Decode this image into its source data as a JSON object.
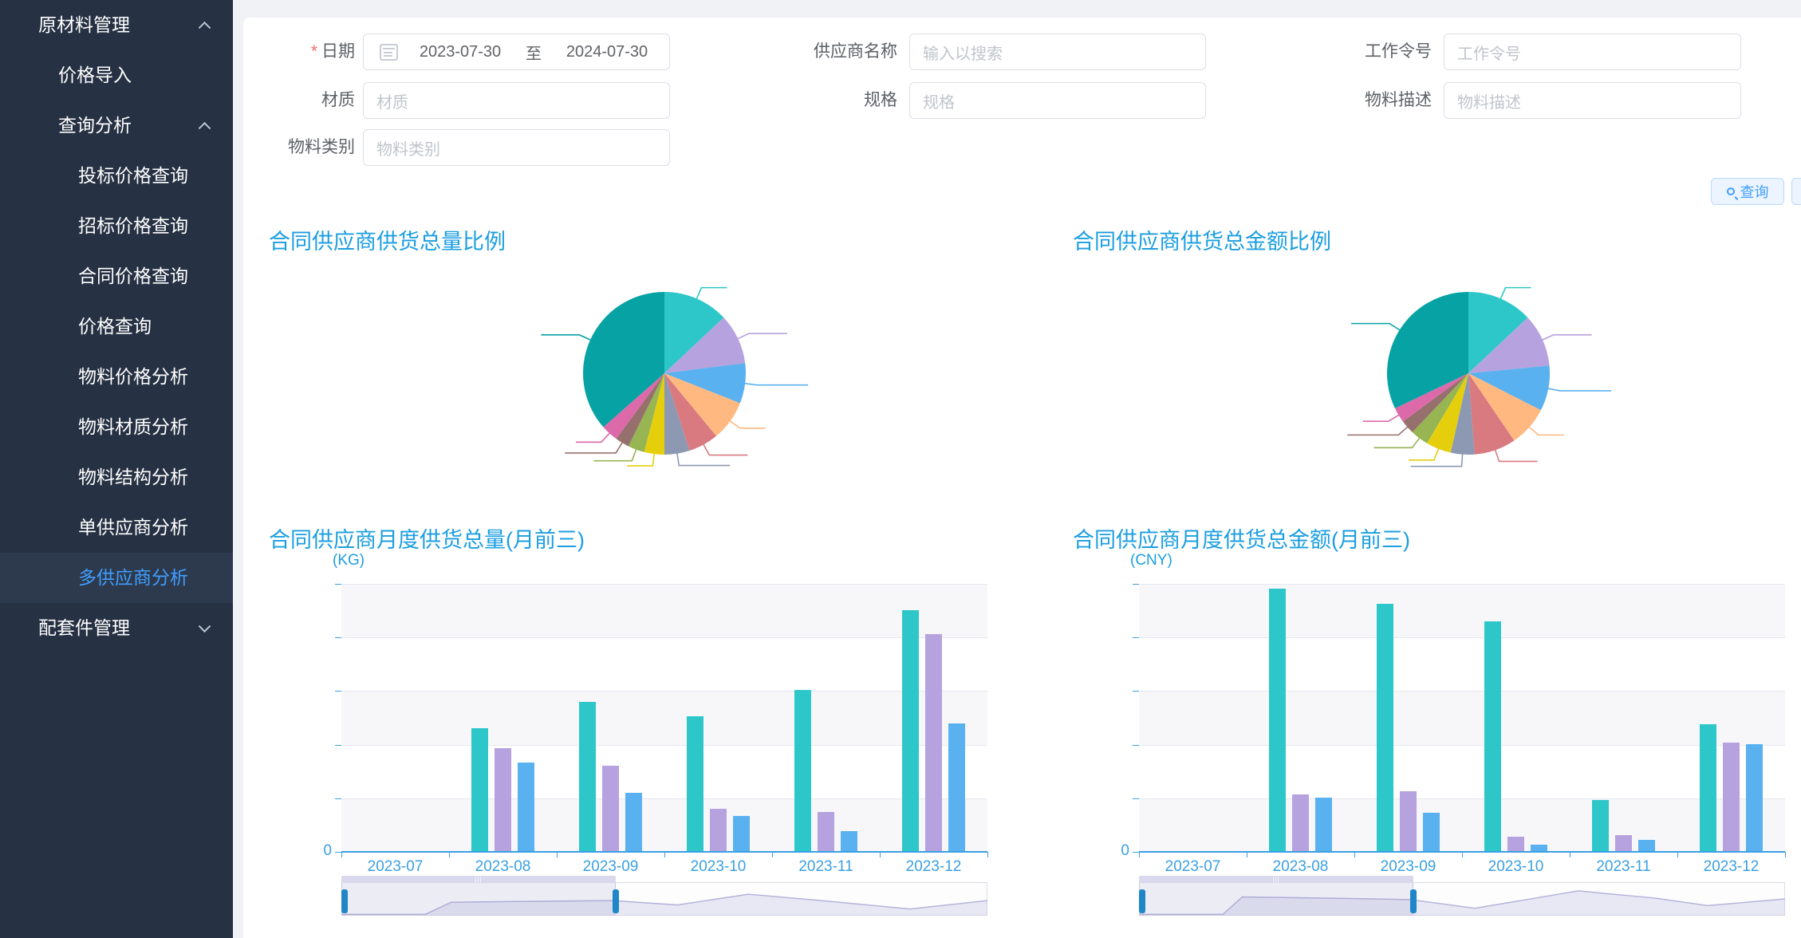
{
  "sidebar": {
    "items": [
      {
        "label": "原材料管理",
        "level": 1,
        "chevron": "up",
        "active": false
      },
      {
        "label": "价格导入",
        "level": 2,
        "chevron": "",
        "active": false
      },
      {
        "label": "查询分析",
        "level": 2,
        "chevron": "up",
        "active": false
      },
      {
        "label": "投标价格查询",
        "level": 3,
        "chevron": "",
        "active": false
      },
      {
        "label": "招标价格查询",
        "level": 3,
        "chevron": "",
        "active": false
      },
      {
        "label": "合同价格查询",
        "level": 3,
        "chevron": "",
        "active": false
      },
      {
        "label": "价格查询",
        "level": 3,
        "chevron": "",
        "active": false
      },
      {
        "label": "物料价格分析",
        "level": 3,
        "chevron": "",
        "active": false
      },
      {
        "label": "物料材质分析",
        "level": 3,
        "chevron": "",
        "active": false
      },
      {
        "label": "物料结构分析",
        "level": 3,
        "chevron": "",
        "active": false
      },
      {
        "label": "单供应商分析",
        "level": 3,
        "chevron": "",
        "active": false
      },
      {
        "label": "多供应商分析",
        "level": 3,
        "chevron": "",
        "active": true
      },
      {
        "label": "配套件管理",
        "level": 1,
        "chevron": "down",
        "active": false
      }
    ]
  },
  "form": {
    "date": {
      "label": "日期",
      "required": true,
      "start": "2023-07-30",
      "separator": "至",
      "end": "2024-07-30"
    },
    "supplier": {
      "label": "供应商名称",
      "placeholder": "输入以搜索"
    },
    "work_order": {
      "label": "工作令号",
      "placeholder": "工作令号"
    },
    "material": {
      "label": "材质",
      "placeholder": "材质"
    },
    "spec": {
      "label": "规格",
      "placeholder": "规格"
    },
    "material_desc": {
      "label": "物料描述",
      "placeholder": "物料描述"
    },
    "material_category": {
      "label": "物料类别",
      "placeholder": "物料类别"
    }
  },
  "actions": {
    "query_label": "查询"
  },
  "colors": {
    "accent": "#409eff",
    "title_blue": "#1b9ee0",
    "axis_blue": "#3aa0e2",
    "sidebar_bg": "#263143",
    "palette": [
      "#2ec7c9",
      "#b6a2de",
      "#5ab1ef",
      "#ffb980",
      "#d87a80",
      "#8d98b3",
      "#e5cf0d",
      "#97b552",
      "#95706d",
      "#dc69aa",
      "#07a2a4"
    ]
  },
  "chart_data": [
    {
      "type": "pie",
      "title": "合同供应商供货总量比例",
      "note": "slice labels not legible in screenshot; leader lines only",
      "slices": [
        {
          "color": "#2ec7c9",
          "pct": 13.0
        },
        {
          "color": "#b6a2de",
          "pct": 10.0
        },
        {
          "color": "#5ab1ef",
          "pct": 8.0
        },
        {
          "color": "#ffb980",
          "pct": 8.0
        },
        {
          "color": "#d87a80",
          "pct": 6.0
        },
        {
          "color": "#8d98b3",
          "pct": 5.0
        },
        {
          "color": "#e5cf0d",
          "pct": 4.0
        },
        {
          "color": "#97b552",
          "pct": 3.3
        },
        {
          "color": "#95706d",
          "pct": 2.8
        },
        {
          "color": "#dc69aa",
          "pct": 3.4
        },
        {
          "color": "#07a2a4",
          "pct": 36.5
        }
      ]
    },
    {
      "type": "pie",
      "title": "合同供应商供货总金额比例",
      "note": "slice labels not legible in screenshot; leader lines only",
      "slices": [
        {
          "color": "#2ec7c9",
          "pct": 13.0
        },
        {
          "color": "#b6a2de",
          "pct": 10.5
        },
        {
          "color": "#5ab1ef",
          "pct": 9.0
        },
        {
          "color": "#ffb980",
          "pct": 8.0
        },
        {
          "color": "#d87a80",
          "pct": 8.3
        },
        {
          "color": "#8d98b3",
          "pct": 4.7
        },
        {
          "color": "#e5cf0d",
          "pct": 5.0
        },
        {
          "color": "#97b552",
          "pct": 3.6
        },
        {
          "color": "#95706d",
          "pct": 2.8
        },
        {
          "color": "#dc69aa",
          "pct": 3.0
        },
        {
          "color": "#07a2a4",
          "pct": 32.1
        }
      ]
    },
    {
      "type": "bar",
      "title": "合同供应商月度供货总量(月前三)",
      "ylabel": "(KG)",
      "y_axis_shown_label": "0",
      "categories": [
        "2023-07",
        "2023-08",
        "2023-09",
        "2023-10",
        "2023-11",
        "2023-12"
      ],
      "series": [
        {
          "color": "#2ec7c9",
          "values_pct_of_axis_max": [
            0,
            46.2,
            55.9,
            50.5,
            60.4,
            90.3
          ]
        },
        {
          "color": "#b6a2de",
          "values_pct_of_axis_max": [
            0,
            38.6,
            32.2,
            16.1,
            14.9,
            81.2
          ]
        },
        {
          "color": "#5ab1ef",
          "values_pct_of_axis_max": [
            0,
            33.2,
            22.1,
            13.4,
            7.6,
            48.0
          ]
        }
      ],
      "datazoom": {
        "window_pct": [
          0,
          42.5
        ]
      }
    },
    {
      "type": "bar",
      "title": "合同供应商月度供货总金额(月前三)",
      "ylabel": "(CNY)",
      "y_axis_shown_label": "0",
      "categories": [
        "2023-07",
        "2023-08",
        "2023-09",
        "2023-10",
        "2023-11",
        "2023-12"
      ],
      "series": [
        {
          "color": "#2ec7c9",
          "values_pct_of_axis_max": [
            0,
            98.2,
            92.6,
            86.1,
            19.3,
            47.5
          ]
        },
        {
          "color": "#b6a2de",
          "values_pct_of_axis_max": [
            0,
            21.5,
            22.5,
            5.6,
            6.4,
            40.9
          ]
        },
        {
          "color": "#5ab1ef",
          "values_pct_of_axis_max": [
            0,
            20.1,
            14.6,
            2.7,
            4.5,
            40.3
          ]
        }
      ],
      "datazoom": {
        "window_pct": [
          0,
          42.5
        ]
      }
    }
  ]
}
